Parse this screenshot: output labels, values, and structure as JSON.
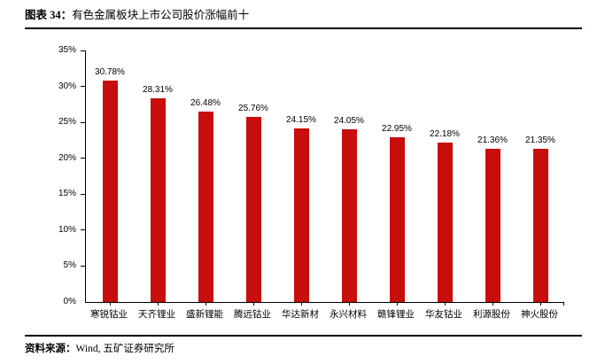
{
  "header": {
    "figure_label": "图表 34：",
    "title": "有色金属板块上市公司股价涨幅前十"
  },
  "footer": {
    "source_label": "资料来源：",
    "source_text": "Wind, 五矿证券研究所"
  },
  "chart_data": {
    "type": "bar",
    "title": "有色金属板块上市公司股价涨幅前十",
    "categories": [
      "寒锐钴业",
      "天齐锂业",
      "盛新锂能",
      "腾远钴业",
      "华达新材",
      "永兴材料",
      "赣锋锂业",
      "华友钴业",
      "利源股份",
      "神火股份"
    ],
    "values": [
      30.78,
      28.31,
      26.48,
      25.76,
      24.15,
      24.05,
      22.95,
      22.18,
      21.36,
      21.35
    ],
    "data_labels": [
      "30.78%",
      "28.31%",
      "26.48%",
      "25.76%",
      "24.15%",
      "24.05%",
      "22.95%",
      "22.18%",
      "21.36%",
      "21.35%"
    ],
    "xlabel": "",
    "ylabel": "",
    "ylim": [
      0,
      35
    ],
    "ytick_step": 5,
    "ytick_labels": [
      "0%",
      "5%",
      "10%",
      "15%",
      "20%",
      "25%",
      "30%",
      "35%"
    ],
    "grid": false,
    "legend": "none",
    "bar_color": "#C80D0D",
    "axis_color": "#000000"
  }
}
